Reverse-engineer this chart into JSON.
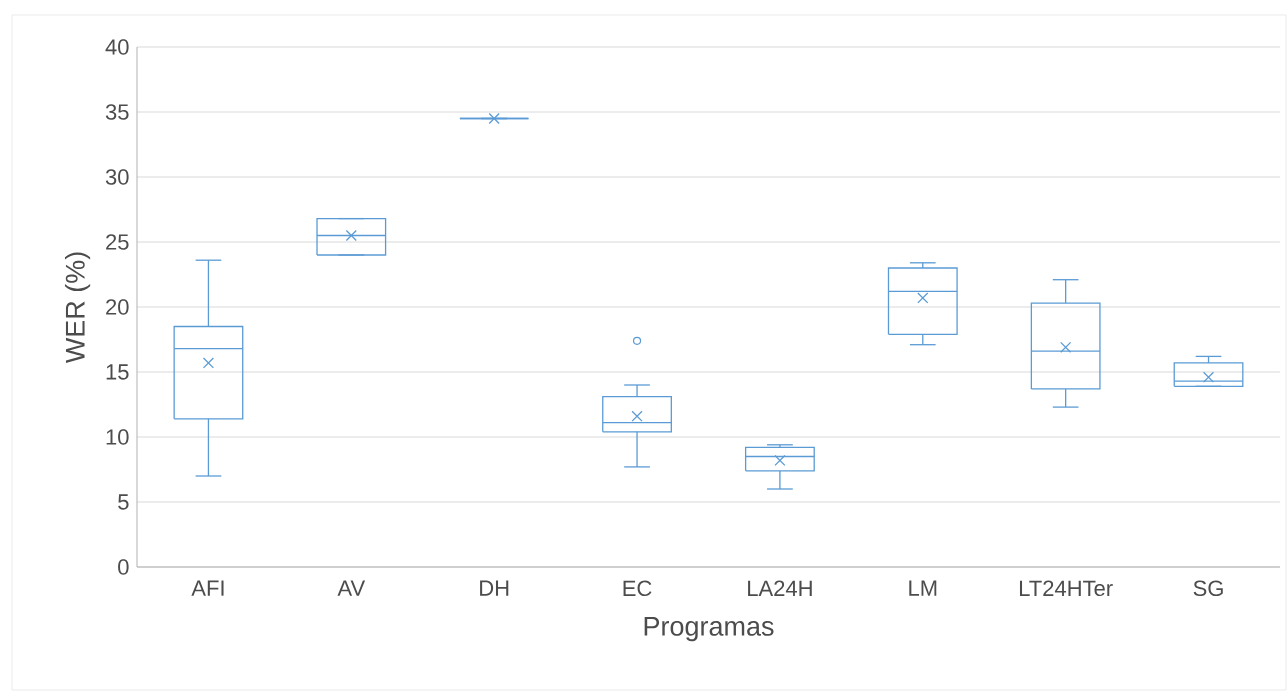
{
  "chart_data": {
    "type": "box",
    "xlabel": "Programas",
    "ylabel": "WER (%)",
    "categories": [
      "AFI",
      "AV",
      "DH",
      "EC",
      "LA24H",
      "LM",
      "LT24HTer",
      "SG"
    ],
    "color": "#5b9bd5",
    "boxes": [
      {
        "low": 7.0,
        "q1": 11.4,
        "median": 16.8,
        "q3": 18.5,
        "high": 23.6,
        "mean": 15.7
      },
      {
        "low": 24.0,
        "q1": 24.0,
        "median": 25.5,
        "q3": 26.8,
        "high": 26.8,
        "mean": 25.5
      },
      {
        "low": 34.5,
        "q1": 34.5,
        "median": 34.5,
        "q3": 34.5,
        "high": 34.5,
        "mean": 34.5
      },
      {
        "low": 7.7,
        "q1": 10.4,
        "median": 11.1,
        "q3": 13.1,
        "high": 14.0,
        "mean": 11.6,
        "outliers": [
          17.4
        ]
      },
      {
        "low": 6.0,
        "q1": 7.4,
        "median": 8.5,
        "q3": 9.2,
        "high": 9.4,
        "mean": 8.2
      },
      {
        "low": 17.1,
        "q1": 17.9,
        "median": 21.2,
        "q3": 23.0,
        "high": 23.4,
        "mean": 20.7
      },
      {
        "low": 12.3,
        "q1": 13.7,
        "median": 16.6,
        "q3": 20.3,
        "high": 22.1,
        "mean": 16.9
      },
      {
        "low": 13.9,
        "q1": 13.9,
        "median": 14.3,
        "q3": 15.7,
        "high": 16.2,
        "mean": 14.6
      }
    ],
    "ylim": [
      0,
      40
    ],
    "yticks": [
      0,
      5,
      10,
      15,
      20,
      25,
      30,
      35,
      40
    ],
    "grid": "y"
  }
}
